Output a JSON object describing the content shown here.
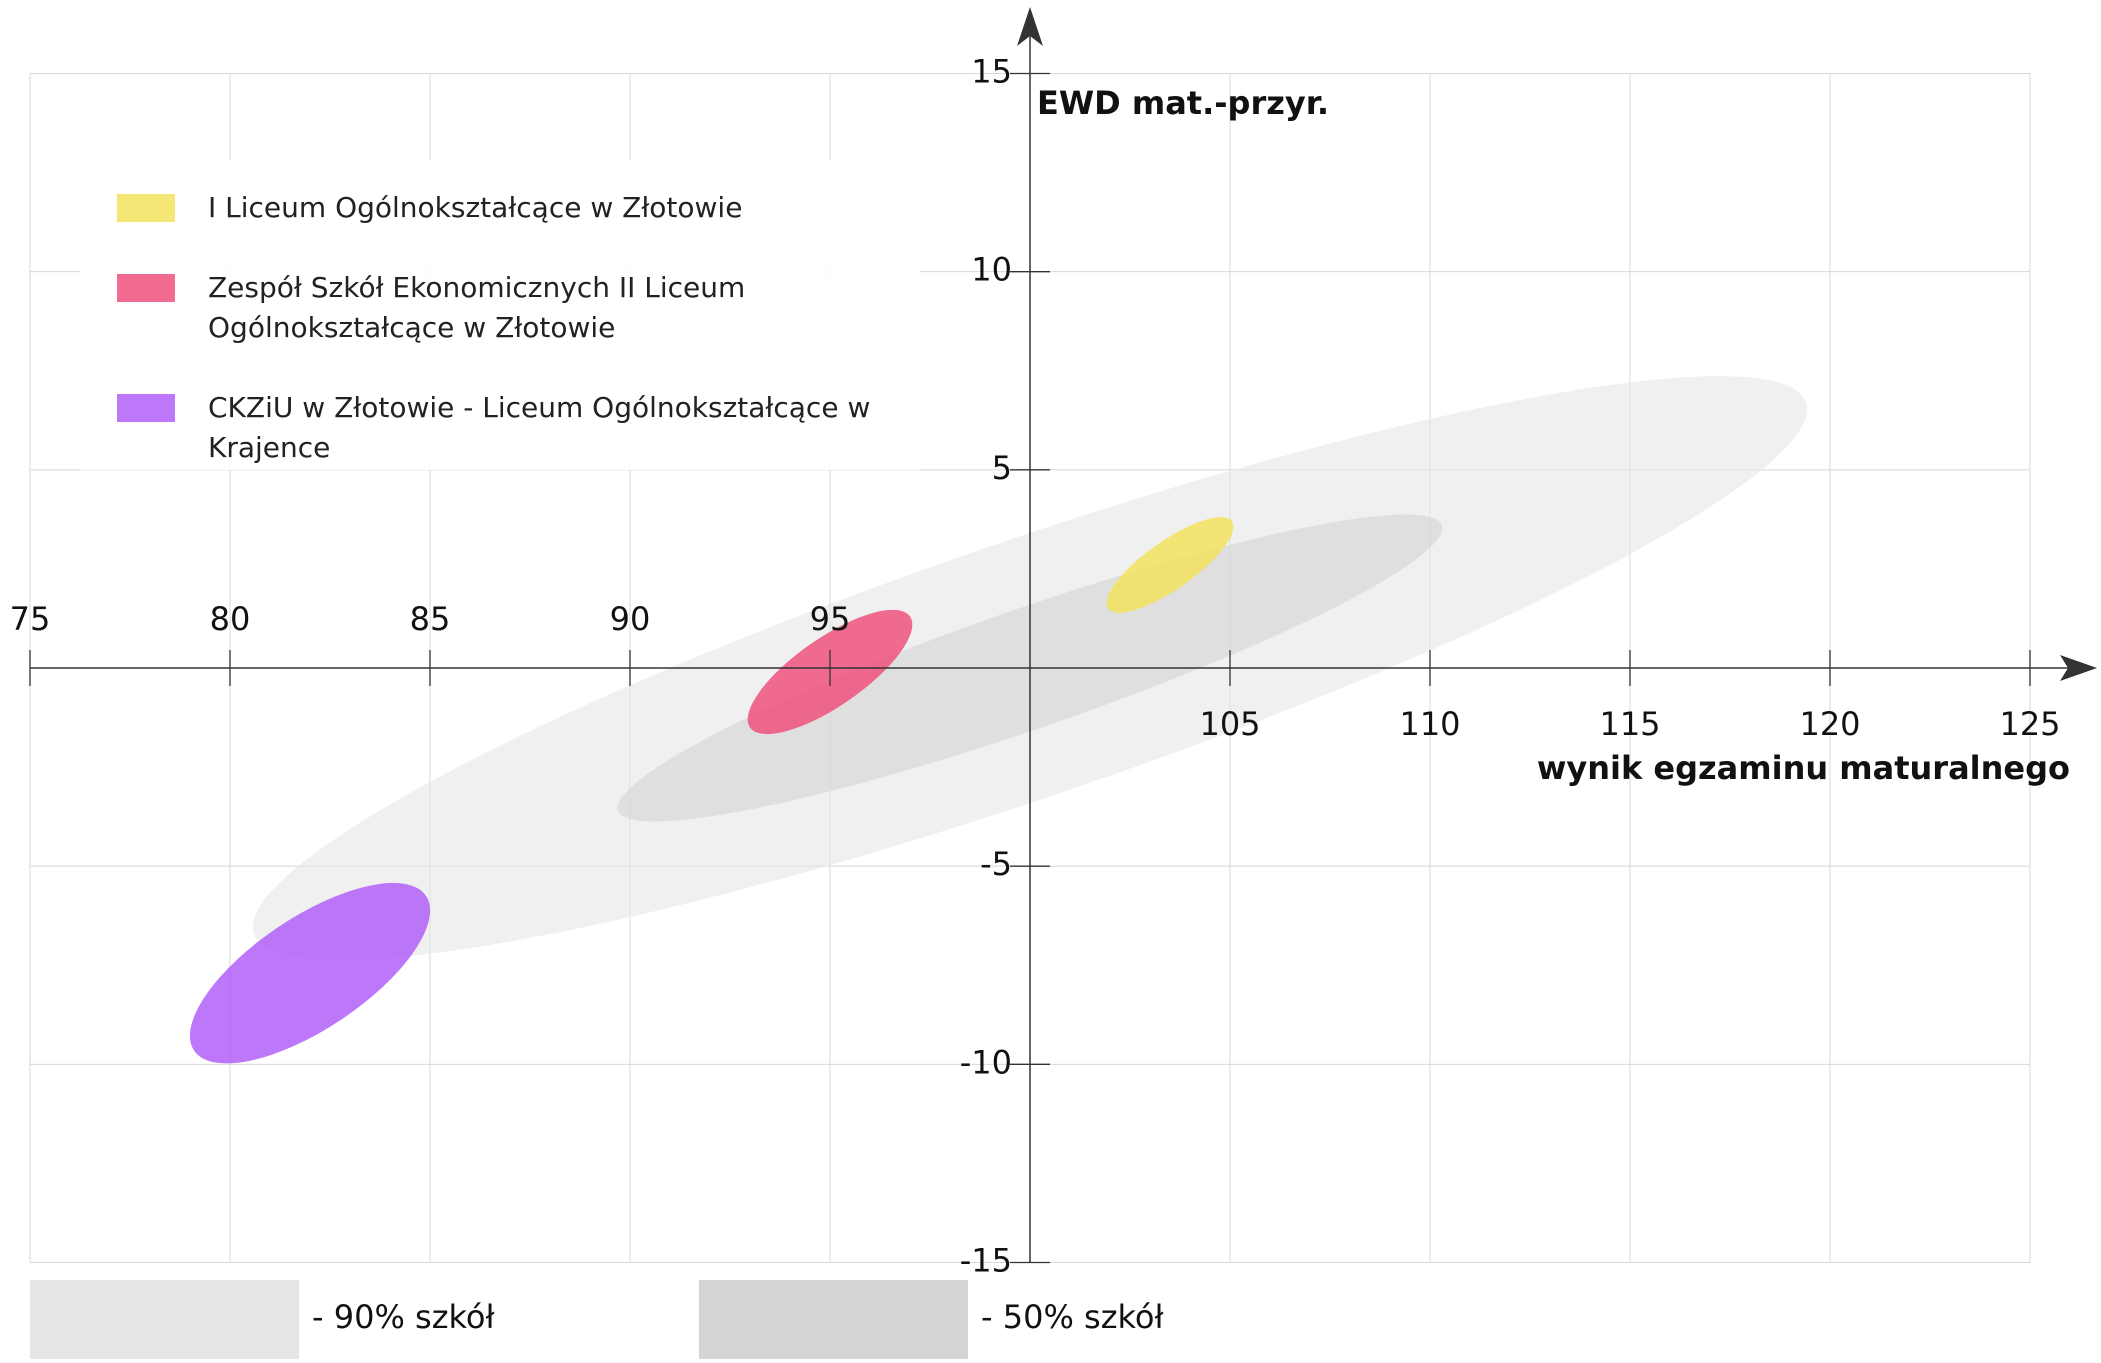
{
  "chart_data": {
    "type": "ellipse",
    "xlabel": "wynik egzaminu maturalnego",
    "ylabel": "EWD mat.-przyr.",
    "xlim": [
      75,
      125
    ],
    "ylim": [
      -15,
      15
    ],
    "xticks": [
      75,
      80,
      85,
      90,
      95,
      105,
      110,
      115,
      120,
      125
    ],
    "yticks": [
      15,
      10,
      5,
      -5,
      -10,
      -15
    ],
    "grid": true,
    "series": [
      {
        "name": "I Liceum Ogólnokształcące w Złotowie",
        "color": "#f2e35e",
        "x": 103.5,
        "y": 2.6,
        "major": [
          1.55,
          1.1
        ],
        "minor": 0.6
      },
      {
        "name": "Zespół Szkół Ekonomicznych II Liceum Ogólnokształcące w Złotowie",
        "color": "#f0527f",
        "x": 95.0,
        "y": -0.1,
        "major": [
          2.0,
          1.4
        ],
        "minor": 0.85
      },
      {
        "name": "CKZiU w Złotowie - Liceum Ogólnokształcące w Krajence",
        "color": "#b060f8",
        "x": 82.0,
        "y": -7.7,
        "major": [
          2.9,
          1.95
        ],
        "minor": 1.4
      }
    ],
    "bands": [
      {
        "name": "- 90% szkół",
        "color": "#e6e6e6",
        "x": 100,
        "y": 0,
        "major": [
          19.4,
          6.7
        ],
        "minor": 3.2
      },
      {
        "name": "- 50% szkół",
        "color": "#d4d4d4",
        "x": 100,
        "y": 0,
        "major": [
          10.3,
          3.6
        ],
        "minor": 1.5
      }
    ]
  }
}
